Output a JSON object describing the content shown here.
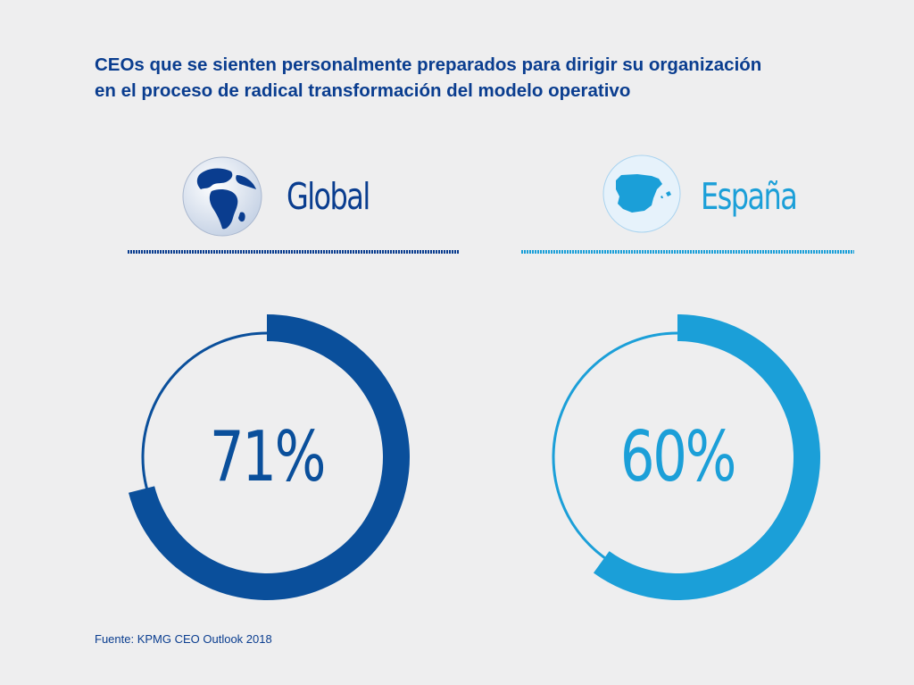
{
  "title": {
    "line1": "CEOs que se sienten personalmente preparados para dirigir su organización",
    "line2": "en el proceso de radical transformación del modelo operativo"
  },
  "colors": {
    "global": "#0a4f9b",
    "spain": "#1b9fd8",
    "title": "#0a3d8f"
  },
  "chart_data": {
    "type": "donut",
    "series": [
      {
        "name": "Global",
        "value": 71,
        "label": "71%",
        "icon": "globe-icon",
        "color": "#0a4f9b"
      },
      {
        "name": "España",
        "value": 60,
        "label": "60%",
        "icon": "spain-map-icon",
        "color": "#1b9fd8"
      }
    ],
    "max": 100
  },
  "source": "Fuente: KPMG CEO Outlook 2018"
}
